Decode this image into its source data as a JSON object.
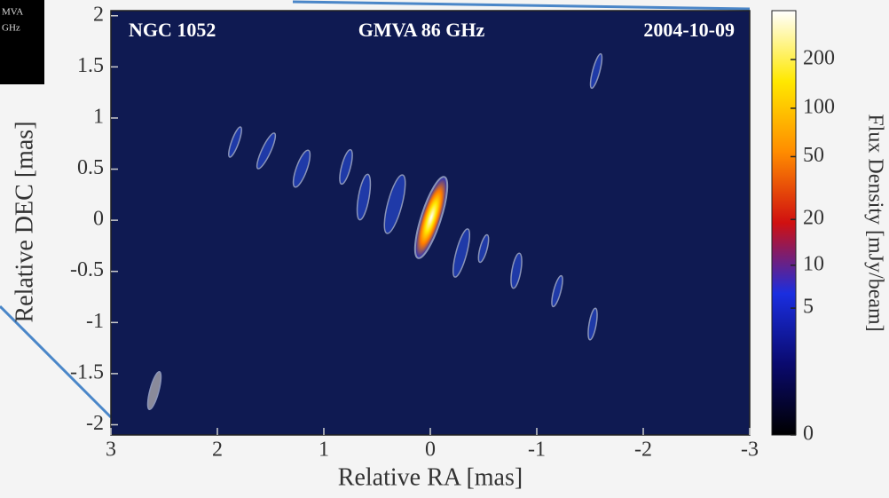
{
  "slide_inset": {
    "lines": [
      "MVA",
      "GHz"
    ]
  },
  "chart_data": {
    "type": "image",
    "annotations": [
      "NGC 1052",
      "GMVA  86 GHz",
      "2004-10-09"
    ],
    "xlabel": "Relative RA [mas]",
    "ylabel": "Relative DEC [mas]",
    "xlim": [
      3,
      -3
    ],
    "xticks": [
      3,
      2,
      1,
      0,
      -1,
      -2,
      -3
    ],
    "ylim": [
      -2.1,
      2.05
    ],
    "yticks": [
      -2,
      -1.5,
      -1,
      -0.5,
      0,
      0.5,
      1,
      1.5,
      2
    ],
    "colorbar": {
      "label": "Flux Density [mJy/beam]",
      "scale": "log1p",
      "clim": [
        0,
        400
      ],
      "ticks": [
        0,
        5,
        10,
        20,
        50,
        100,
        200
      ],
      "colors": [
        "#000000",
        "#0a0a6e",
        "#1a2ee0",
        "#d01010",
        "#ff8c00",
        "#ffe800",
        "#ffffff"
      ]
    }
  }
}
